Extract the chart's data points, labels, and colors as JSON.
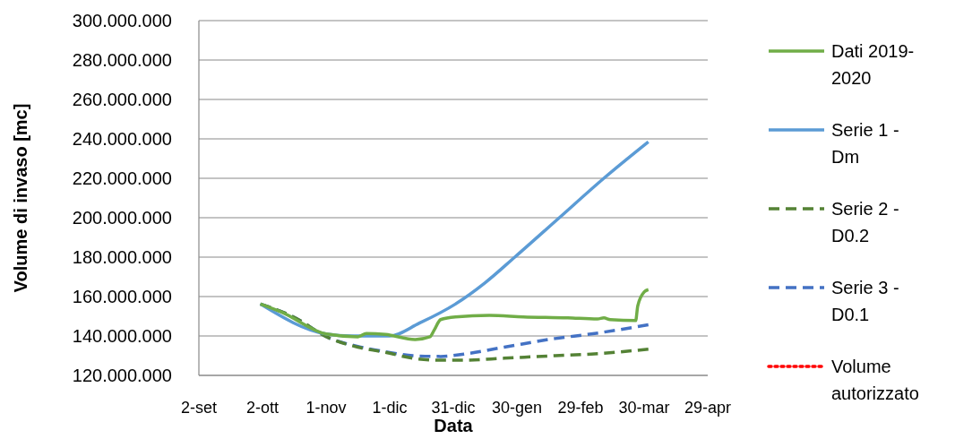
{
  "chart_data": {
    "type": "line",
    "xlabel": "Data",
    "ylabel": "Volume di invaso [mc]",
    "xlim": [
      "2019-09-02",
      "2020-04-29"
    ],
    "xticks": [
      {
        "value": "2019-09-02",
        "label": "2-set"
      },
      {
        "value": "2019-10-02",
        "label": "2-ott"
      },
      {
        "value": "2019-11-01",
        "label": "1-nov"
      },
      {
        "value": "2019-12-01",
        "label": "1-dic"
      },
      {
        "value": "2019-12-31",
        "label": "31-dic"
      },
      {
        "value": "2020-01-30",
        "label": "30-gen"
      },
      {
        "value": "2020-02-29",
        "label": "29-feb"
      },
      {
        "value": "2020-03-30",
        "label": "30-mar"
      },
      {
        "value": "2020-04-29",
        "label": "29-apr"
      }
    ],
    "ylim": [
      120000000,
      300000000
    ],
    "yticks": [
      {
        "value": 120000000,
        "label": "120.000.000"
      },
      {
        "value": 140000000,
        "label": "140.000.000"
      },
      {
        "value": 160000000,
        "label": "160.000.000"
      },
      {
        "value": 180000000,
        "label": "180.000.000"
      },
      {
        "value": 200000000,
        "label": "200.000.000"
      },
      {
        "value": 220000000,
        "label": "220.000.000"
      },
      {
        "value": 240000000,
        "label": "240.000.000"
      },
      {
        "value": 260000000,
        "label": "260.000.000"
      },
      {
        "value": 280000000,
        "label": "280.000.000"
      },
      {
        "value": 300000000,
        "label": "300.000.000"
      }
    ],
    "grid": "y",
    "legend": "right",
    "series": [
      {
        "name": "Dati 2019-2020",
        "color": "#70ad47",
        "line_style": "solid",
        "x": [
          "2019-10-01",
          "2019-10-11",
          "2019-11-01",
          "2019-11-16",
          "2019-11-20",
          "2019-11-29",
          "2019-12-13",
          "2019-12-20",
          "2019-12-22",
          "2019-12-25",
          "2020-01-01",
          "2020-01-17",
          "2020-02-02",
          "2020-02-23",
          "2020-03-08",
          "2020-03-11",
          "2020-03-14",
          "2020-03-26",
          "2020-03-27",
          "2020-03-30",
          "2020-04-01"
        ],
        "values": [
          156200000,
          152100000,
          141000000,
          139600000,
          141300000,
          140800000,
          138200000,
          139600000,
          143000000,
          148300000,
          149700000,
          150400000,
          149700000,
          149200000,
          148600000,
          149200000,
          148300000,
          147800000,
          155300000,
          162300000,
          163500000
        ]
      },
      {
        "name": "Serie 1 - Dm",
        "color": "#5b9bd5",
        "line_style": "solid",
        "x": [
          "2019-10-01",
          "2019-11-01",
          "2019-11-13",
          "2019-12-01",
          "2019-12-15",
          "2020-01-01",
          "2020-01-15",
          "2020-01-29",
          "2020-02-19",
          "2020-03-11",
          "2020-04-01"
        ],
        "values": [
          156200000,
          141000000,
          140000000,
          140000000,
          146500000,
          156200000,
          167000000,
          180000000,
          200000000,
          220000000,
          238500000
        ]
      },
      {
        "name": "Serie 2 - D0.2",
        "color": "#548235",
        "line_style": "dashed",
        "x": [
          "2019-10-01",
          "2019-10-16",
          "2019-11-03",
          "2019-11-16",
          "2019-11-29",
          "2019-12-12",
          "2019-12-25",
          "2020-01-05",
          "2020-01-24",
          "2020-02-17",
          "2020-03-05",
          "2020-04-01"
        ],
        "values": [
          156200000,
          150000000,
          138700000,
          134300000,
          131700000,
          128700000,
          127700000,
          127700000,
          128700000,
          130000000,
          130800000,
          133300000
        ]
      },
      {
        "name": "Serie 3 - D0.1",
        "color": "#4472c4",
        "line_style": "dashed",
        "x": [
          "2019-10-01",
          "2019-10-16",
          "2019-11-03",
          "2019-11-16",
          "2019-11-29",
          "2019-12-12",
          "2019-12-25",
          "2020-01-05",
          "2020-01-24",
          "2020-02-17",
          "2020-03-05",
          "2020-04-01"
        ],
        "values": [
          156200000,
          150000000,
          138700000,
          134700000,
          132000000,
          130000000,
          129600000,
          130800000,
          134300000,
          138700000,
          141000000,
          145700000
        ]
      },
      {
        "name": "Volume autorizzato",
        "color": "#ff0000",
        "line_style": "dotted"
      }
    ]
  }
}
